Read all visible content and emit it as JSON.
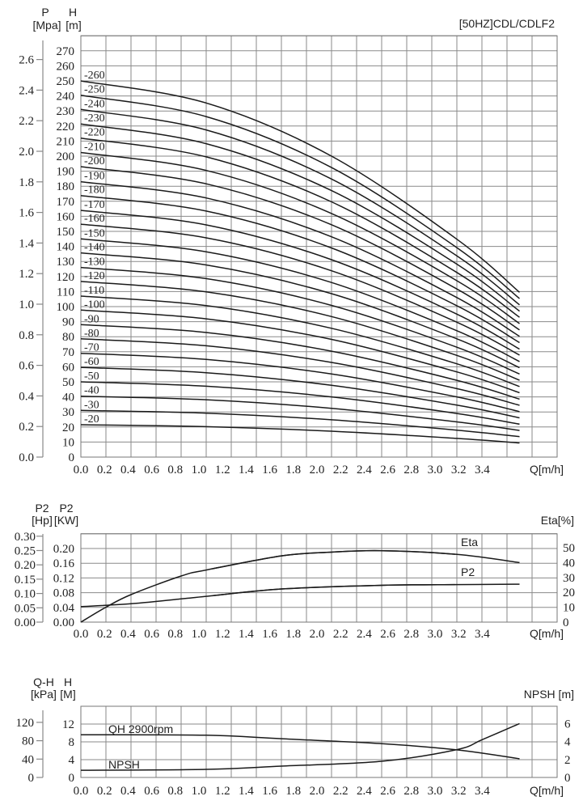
{
  "title": "[50HZ]CDL/CDLF2",
  "chart_data": [
    {
      "type": "line",
      "header_left": {
        "name": "P",
        "unit": "[Mpa]"
      },
      "header_right": {
        "name": "H",
        "unit": "[m]"
      },
      "xlabel": "Q[m/h]",
      "xlim": [
        0,
        3.8
      ],
      "ylim": [
        0,
        280
      ],
      "p_lim": [
        0,
        2.6
      ],
      "grid": true,
      "x_ticks": [
        "0.0",
        "0.2",
        "0.4",
        "0.6",
        "0.8",
        "1.0",
        "1.2",
        "1.4",
        "1.6",
        "1.8",
        "2.0",
        "2.2",
        "2.4",
        "2.6",
        "2.8",
        "3.0",
        "3.2",
        "3.4"
      ],
      "h_ticks": [
        "0",
        "10",
        "20",
        "30",
        "40",
        "50",
        "60",
        "70",
        "80",
        "90",
        "100",
        "110",
        "120",
        "130",
        "140",
        "150",
        "160",
        "170",
        "180",
        "190",
        "200",
        "210",
        "220",
        "230",
        "240",
        "250",
        "260",
        "270"
      ],
      "p_ticks": [
        "0.0",
        "0.2",
        "0.4",
        "0.6",
        "0.8",
        "1.0",
        "1.2",
        "1.4",
        "1.6",
        "1.8",
        "2.0",
        "2.2",
        "2.4",
        "2.6"
      ],
      "x": [
        0,
        1.0,
        2.0,
        3.0,
        3.5
      ],
      "series": [
        {
          "name": "-20",
          "values": [
            21.5,
            20.2,
            17.2,
            12.4,
            9.4
          ]
        },
        {
          "name": "-30",
          "values": [
            31,
            29.2,
            24.8,
            17.9,
            13.6
          ]
        },
        {
          "name": "-40",
          "values": [
            40.5,
            38.1,
            32.4,
            23.4,
            17.7
          ]
        },
        {
          "name": "-50",
          "values": [
            50,
            47.1,
            40,
            29,
            21.9
          ]
        },
        {
          "name": "-60",
          "values": [
            59.6,
            56.1,
            47.7,
            34.5,
            26.1
          ]
        },
        {
          "name": "-70",
          "values": [
            69,
            64.9,
            55.2,
            40,
            30.2
          ]
        },
        {
          "name": "-80",
          "values": [
            78.6,
            74,
            62.9,
            45.5,
            34.4
          ]
        },
        {
          "name": "-90",
          "values": [
            88,
            82.8,
            70.4,
            51,
            38.5
          ]
        },
        {
          "name": "-100",
          "values": [
            97.7,
            91.9,
            78.2,
            56.6,
            42.8
          ]
        },
        {
          "name": "-110",
          "values": [
            107,
            100.7,
            85.6,
            62,
            46.9
          ]
        },
        {
          "name": "-120",
          "values": [
            116.7,
            109.8,
            93.4,
            67.6,
            51.1
          ]
        },
        {
          "name": "-130",
          "values": [
            126,
            118.6,
            100.8,
            73,
            55.2
          ]
        },
        {
          "name": "-140",
          "values": [
            135.7,
            127.7,
            108.6,
            78.6,
            59.4
          ]
        },
        {
          "name": "-150",
          "values": [
            145,
            136.4,
            116,
            84,
            63.5
          ]
        },
        {
          "name": "-160",
          "values": [
            154.8,
            145.7,
            123.8,
            89.6,
            67.8
          ]
        },
        {
          "name": "-170",
          "values": [
            164,
            154.3,
            131.2,
            95,
            71.8
          ]
        },
        {
          "name": "-180",
          "values": [
            173.8,
            163.5,
            139,
            100.6,
            76.1
          ]
        },
        {
          "name": "-190",
          "values": [
            183,
            172.2,
            146.4,
            106,
            80.2
          ]
        },
        {
          "name": "-200",
          "values": [
            193,
            181.6,
            154.4,
            111.7,
            84.5
          ]
        },
        {
          "name": "-210",
          "values": [
            202.4,
            190.5,
            161.9,
            117.2,
            88.7
          ]
        },
        {
          "name": "-220",
          "values": [
            212,
            199.5,
            169.6,
            122.7,
            92.9
          ]
        },
        {
          "name": "-230",
          "values": [
            221.4,
            208.3,
            177.1,
            128.2,
            97
          ]
        },
        {
          "name": "-240",
          "values": [
            231,
            217.4,
            184.8,
            133.7,
            101.2
          ]
        },
        {
          "name": "-250",
          "values": [
            240.5,
            226.3,
            192.4,
            139.2,
            105.3
          ]
        },
        {
          "name": "-260",
          "values": [
            250,
            235.3,
            200,
            144.8,
            109.5
          ]
        }
      ]
    },
    {
      "type": "line",
      "header_left": {
        "name": "P2",
        "unit": "[Hp]"
      },
      "header_mid": {
        "name": "P2",
        "unit": "[KW]"
      },
      "header_right": "Eta[%]",
      "xlabel": "Q[m/h]",
      "xlim": [
        0,
        3.8
      ],
      "ylim": [
        0,
        0.24
      ],
      "hp_lim": [
        0,
        0.3
      ],
      "eta_lim": [
        0,
        50
      ],
      "grid": true,
      "x_ticks": [
        "0.0",
        "0.2",
        "0.4",
        "0.6",
        "0.8",
        "1.0",
        "1.2",
        "1.4",
        "1.6",
        "1.8",
        "2.0",
        "2.2",
        "2.4",
        "2.6",
        "2.8",
        "3.0",
        "3.2",
        "3.4"
      ],
      "kw_ticks": [
        "0.00",
        "0.04",
        "0.08",
        "0.12",
        "0.16",
        "0.20"
      ],
      "hp_ticks": [
        "0.00",
        "0.05",
        "0.10",
        "0.15",
        "0.20",
        "0.25",
        "0.30"
      ],
      "eta_ticks": [
        "0",
        "10",
        "20",
        "30",
        "40",
        "50"
      ],
      "series": [
        {
          "name": "Eta",
          "axis": "right",
          "x": [
            0,
            0.2,
            0.4,
            0.8,
            1.0,
            1.6,
            2.0,
            2.4,
            3.0,
            3.5
          ],
          "values": [
            0,
            10,
            18.5,
            31,
            35,
            44.5,
            47,
            48,
            45.5,
            40
          ]
        },
        {
          "name": "P2",
          "axis": "left",
          "x": [
            0,
            0.4,
            0.8,
            1.0,
            1.6,
            2.4,
            3.0,
            3.5
          ],
          "values": [
            0.042,
            0.05,
            0.063,
            0.07,
            0.09,
            0.1,
            0.102,
            0.103
          ]
        }
      ]
    },
    {
      "type": "line",
      "header_left": {
        "name": "Q-H",
        "unit": "[kPa]"
      },
      "header_mid": {
        "name": "H",
        "unit": "[M]"
      },
      "header_right": "NPSH [m]",
      "xlabel": "Q[m/h]",
      "xlim": [
        0,
        3.8
      ],
      "ylim": [
        0,
        16
      ],
      "kpa_lim": [
        0,
        120
      ],
      "npsh_lim": [
        0,
        6
      ],
      "grid": true,
      "x_ticks": [
        "0.0",
        "0.2",
        "0.4",
        "0.6",
        "0.8",
        "1.0",
        "1.2",
        "1.4",
        "1.6",
        "1.8",
        "2.0",
        "2.2",
        "2.4",
        "2.6",
        "2.8",
        "3.0",
        "3.2",
        "3.4"
      ],
      "h_ticks": [
        "0",
        "4",
        "8",
        "12"
      ],
      "kpa_ticks": [
        "0",
        "40",
        "80",
        "120"
      ],
      "npsh_ticks": [
        "0",
        "2",
        "4",
        "6"
      ],
      "series": [
        {
          "name": "QH 2900rpm",
          "axis": "left",
          "x": [
            0,
            1.0,
            1.6,
            2.4,
            3.0,
            3.5
          ],
          "values": [
            9.6,
            9.5,
            8.7,
            7.6,
            6.2,
            4.2
          ]
        },
        {
          "name": "NPSH",
          "axis": "right",
          "x": [
            0,
            1.0,
            1.6,
            2.4,
            3.0,
            3.2,
            3.5
          ],
          "values": [
            0.8,
            0.9,
            1.26,
            1.8,
            3.1,
            4.2,
            6.0
          ]
        }
      ]
    }
  ]
}
